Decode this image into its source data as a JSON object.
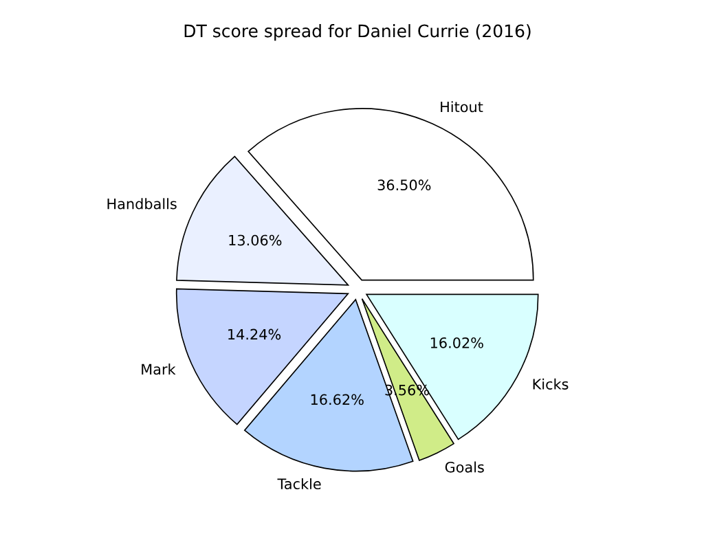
{
  "chart_data": {
    "type": "pie",
    "title": "DT score spread for Daniel Currie (2016)",
    "categories": [
      "Hitout",
      "Handballs",
      "Mark",
      "Tackle",
      "Goals",
      "Kicks"
    ],
    "values": [
      36.5,
      13.06,
      14.24,
      16.62,
      3.56,
      16.02
    ],
    "value_labels": [
      "36.50%",
      "13.06%",
      "14.24%",
      "16.62%",
      "3.56%",
      "16.02%"
    ],
    "colors": [
      "#ffffff",
      "#eaf0ff",
      "#c5d5ff",
      "#b3d4ff",
      "#d0ec88",
      "#d9ffff"
    ],
    "legend": false
  }
}
